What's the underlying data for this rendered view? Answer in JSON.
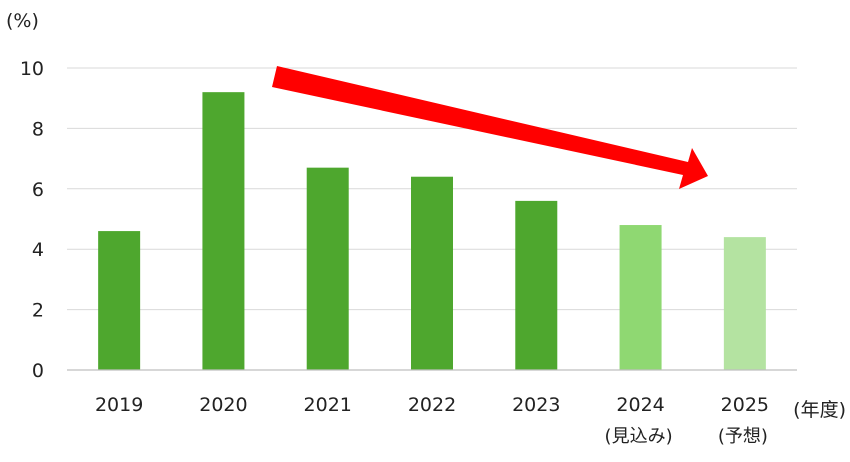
{
  "chart_data": {
    "type": "bar",
    "ylabel": "(%)",
    "xlabel": "(年度)",
    "ylim": [
      0,
      10
    ],
    "yticks": [
      0,
      2,
      4,
      6,
      8,
      10
    ],
    "grid": true,
    "categories": [
      "2019",
      "2020",
      "2021",
      "2022",
      "2023",
      "2024",
      "2025"
    ],
    "category_notes": [
      "",
      "",
      "",
      "",
      "",
      "(見込み)",
      "(予想)"
    ],
    "values": [
      4.6,
      9.2,
      6.7,
      6.4,
      5.6,
      4.8,
      4.4
    ],
    "bar_colors": [
      "#4ea72e",
      "#4ea72e",
      "#4ea72e",
      "#4ea72e",
      "#4ea72e",
      "#8fd872",
      "#b4e3a1"
    ],
    "annotations": [
      {
        "type": "arrow",
        "color": "#ff0000",
        "meaning": "downward trend"
      }
    ]
  },
  "colors": {
    "grid": "#d9d9d9",
    "axis": "#bfbfbf",
    "text": "#222222",
    "arrow": "#ff0000"
  }
}
